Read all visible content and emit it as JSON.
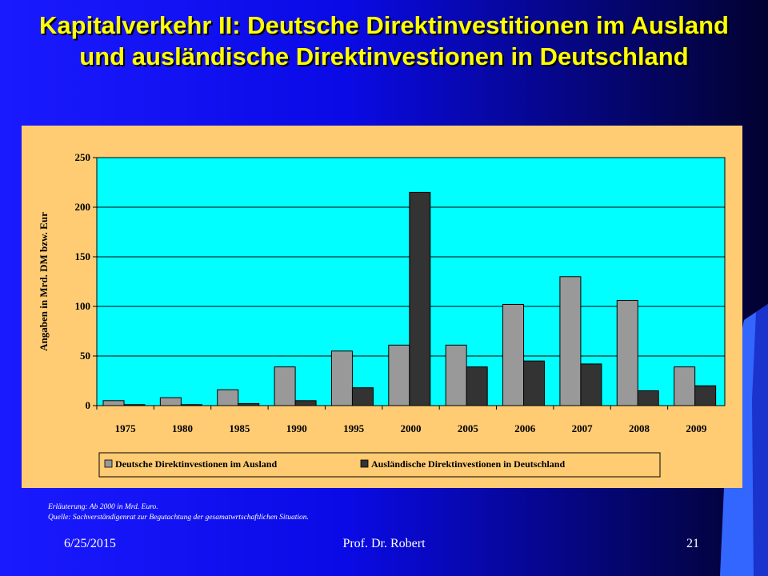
{
  "slide": {
    "title": "Kapitalverkehr II: Deutsche Direktinvestitionen im Ausland und ausländische Direktinvestionen in Deutschland",
    "note_1": "Erläuterung: Ab 2000 in Mrd. Euro.",
    "note_2": "Quelle: Sachverständigenrat zur Begutachtung der gesamatwrtschaftlichen Situation.",
    "footer_date": "6/25/2015",
    "footer_author": "Prof. Dr. Robert",
    "footer_page": "21"
  },
  "colors": {
    "plot_bg": "#00ffff",
    "panel_bg": "#ffcc73",
    "series_1": "#999999",
    "series_2": "#333333",
    "title": "#ffff00"
  },
  "chart_data": {
    "type": "bar",
    "title": "",
    "xlabel": "",
    "ylabel": "Angaben in Mrd. DM bzw. Eur",
    "ylim": [
      0,
      250
    ],
    "yticks": [
      "0",
      "50",
      "100",
      "150",
      "200",
      "250"
    ],
    "grid": true,
    "legend_position": "bottom",
    "categories": [
      "1975",
      "1980",
      "1985",
      "1990",
      "1995",
      "2000",
      "2005",
      "2006",
      "2007",
      "2008",
      "2009"
    ],
    "series": [
      {
        "name": "Deutsche Direktinvestionen im Ausland",
        "values": [
          5,
          8,
          16,
          39,
          55,
          61,
          61,
          102,
          130,
          106,
          39
        ]
      },
      {
        "name": "Ausländische Direktinvestionen in Deutschland",
        "values": [
          1,
          1,
          2,
          5,
          18,
          215,
          39,
          45,
          42,
          15,
          20
        ]
      }
    ]
  }
}
